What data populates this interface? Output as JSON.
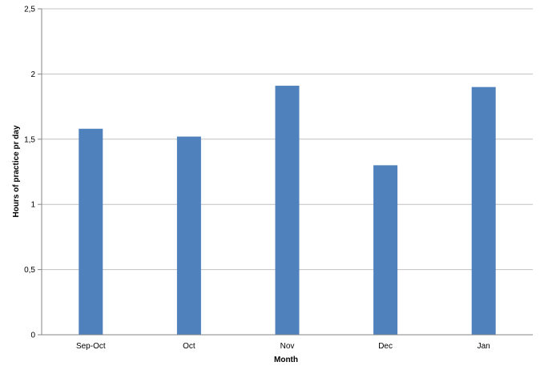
{
  "chart_data": {
    "type": "bar",
    "title": "",
    "xlabel": "Month",
    "ylabel": "Hours of practice pr day",
    "categories": [
      "Sep-Oct",
      "Oct",
      "Nov",
      "Dec",
      "Jan"
    ],
    "values": [
      1.58,
      1.52,
      1.91,
      1.3,
      1.9
    ],
    "ylim": [
      0,
      2.5
    ],
    "yticks": [
      "0",
      "0,5",
      "1",
      "1,5",
      "2",
      "2,5"
    ],
    "grid": true,
    "legend": "none",
    "bar_color": "#4f81bd",
    "grid_color": "#c0c0c0"
  }
}
